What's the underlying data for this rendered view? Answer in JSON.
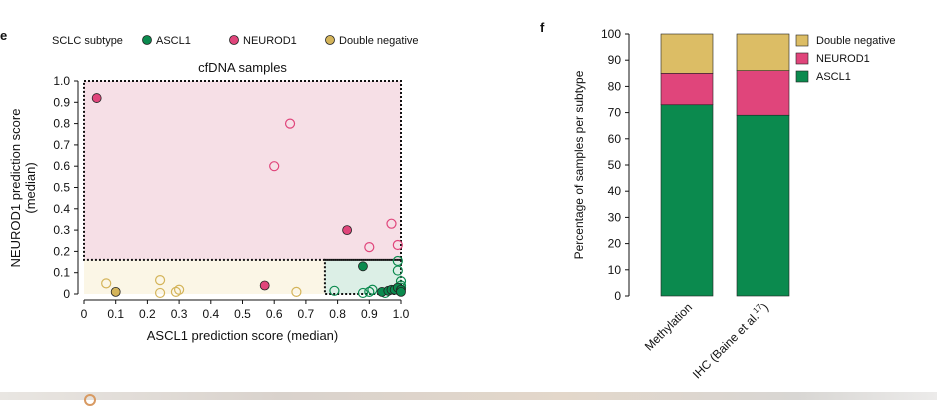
{
  "panel_labels": {
    "left": "e",
    "right": "f"
  },
  "legend": {
    "title": "SCLC subtype",
    "items": [
      {
        "label": "ASCL1",
        "color": "#0b8a4e"
      },
      {
        "label": "NEUROD1",
        "color": "#e0457b"
      },
      {
        "label": "Double negative",
        "color": "#d4b45a"
      }
    ]
  },
  "chart_data": [
    {
      "type": "scatter",
      "title": "cfDNA samples",
      "xlabel": "ASCL1 prediction score (median)",
      "ylabel": "NEUROD1 prediction score\n(median)",
      "xlim": [
        0,
        1.0
      ],
      "ylim": [
        0,
        1.0
      ],
      "xticks": [
        "0",
        "0.1",
        "0.2",
        "0.3",
        "0.4",
        "0.5",
        "0.6",
        "0.7",
        "0.8",
        "0.9",
        "1.0"
      ],
      "yticks": [
        "0",
        "0.1",
        "0.2",
        "0.3",
        "0.4",
        "0.5",
        "0.6",
        "0.7",
        "0.8",
        "0.9",
        "1.0"
      ],
      "regions": [
        {
          "name": "NEUROD1",
          "x": [
            0,
            1.0
          ],
          "y": [
            0.16,
            1.0
          ],
          "color": "#f6dfe6"
        },
        {
          "name": "Double negative",
          "x": [
            0,
            0.76
          ],
          "y": [
            0,
            0.16
          ],
          "color": "#fbf6e6"
        },
        {
          "name": "ASCL1",
          "x": [
            0.76,
            1.0
          ],
          "y": [
            0,
            0.16
          ],
          "color": "#dcefe6"
        }
      ],
      "series": [
        {
          "name": "ASCL1",
          "color": "#0b8a4e",
          "filled": [
            [
              0.88,
              0.13
            ],
            [
              0.94,
              0.01
            ],
            [
              0.96,
              0.015
            ],
            [
              0.97,
              0.02
            ],
            [
              0.98,
              0.02
            ],
            [
              0.99,
              0.03
            ],
            [
              1.0,
              0.02
            ],
            [
              1.0,
              0.01
            ]
          ],
          "hollow": [
            [
              0.79,
              0.015
            ],
            [
              0.88,
              0.005
            ],
            [
              0.9,
              0.01
            ],
            [
              0.91,
              0.02
            ],
            [
              0.95,
              0.005
            ],
            [
              0.99,
              0.155
            ],
            [
              0.99,
              0.11
            ],
            [
              1.0,
              0.06
            ],
            [
              1.0,
              0.04
            ],
            [
              0.99,
              0.02
            ],
            [
              1.0,
              0.03
            ]
          ]
        },
        {
          "name": "NEUROD1",
          "color": "#e0457b",
          "filled": [
            [
              0.04,
              0.92
            ],
            [
              0.83,
              0.3
            ],
            [
              0.57,
              0.04
            ]
          ],
          "hollow": [
            [
              0.65,
              0.8
            ],
            [
              0.6,
              0.6
            ],
            [
              0.97,
              0.33
            ],
            [
              0.9,
              0.22
            ],
            [
              0.99,
              0.23
            ]
          ]
        },
        {
          "name": "Double negative",
          "color": "#d4b45a",
          "filled": [
            [
              0.1,
              0.01
            ]
          ],
          "hollow": [
            [
              0.07,
              0.05
            ],
            [
              0.24,
              0.065
            ],
            [
              0.24,
              0.005
            ],
            [
              0.29,
              0.01
            ],
            [
              0.3,
              0.02
            ],
            [
              0.67,
              0.01
            ]
          ]
        }
      ]
    },
    {
      "type": "bar",
      "stacked": true,
      "ylabel": "Percentage of samples per subtype",
      "ylim": [
        0,
        100
      ],
      "yticks": [
        "0",
        "10",
        "20",
        "30",
        "40",
        "50",
        "60",
        "70",
        "80",
        "90",
        "100"
      ],
      "categories": [
        "Methylation",
        "IHC (Baine et al.17)"
      ],
      "category_labels": [
        {
          "main": "Methylation",
          "sup": ""
        },
        {
          "main": "IHC (Baine et al.",
          "sup": "17",
          "tail": ")"
        }
      ],
      "series": [
        {
          "name": "ASCL1",
          "color": "#0b8a4e",
          "values": [
            73,
            69
          ]
        },
        {
          "name": "NEUROD1",
          "color": "#e0457b",
          "values": [
            12,
            17
          ]
        },
        {
          "name": "Double negative",
          "color": "#dcbd65",
          "values": [
            15,
            14
          ]
        }
      ],
      "legend_order": [
        "Double negative",
        "NEUROD1",
        "ASCL1"
      ]
    }
  ]
}
